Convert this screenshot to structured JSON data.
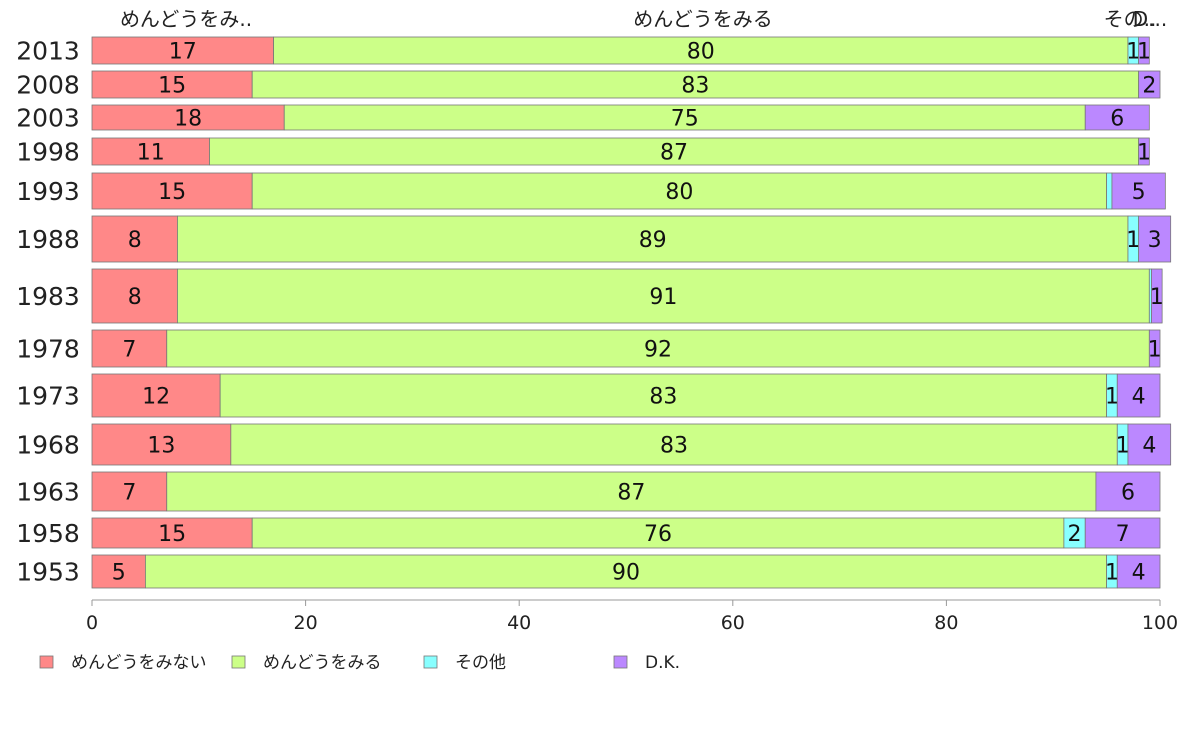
{
  "chart_data": {
    "type": "bar",
    "orientation": "horizontal",
    "stacked": true,
    "categories": [
      "2013",
      "2008",
      "2003",
      "1998",
      "1993",
      "1988",
      "1983",
      "1978",
      "1973",
      "1968",
      "1963",
      "1958",
      "1953"
    ],
    "series": [
      {
        "name": "めんどうをみない",
        "color": "#ff8888",
        "values": [
          17,
          15,
          18,
          11,
          15,
          8,
          8,
          7,
          12,
          13,
          7,
          15,
          5
        ]
      },
      {
        "name": "めんどうをみる",
        "color": "#ccff88",
        "values": [
          80,
          83,
          75,
          87,
          80,
          89,
          91,
          92,
          83,
          83,
          87,
          76,
          90
        ]
      },
      {
        "name": "その他",
        "color": "#88ffff",
        "values": [
          1,
          0,
          0,
          0,
          0.5,
          1,
          0.2,
          0,
          1,
          1,
          0,
          2,
          1
        ]
      },
      {
        "name": "D.K.",
        "color": "#bb88ff",
        "values": [
          1,
          2,
          6,
          1,
          5,
          3,
          1,
          1,
          4,
          4,
          6,
          7,
          4
        ]
      }
    ],
    "data_labels": [
      [
        "17",
        "80",
        "1",
        "1"
      ],
      [
        "15",
        "83",
        "",
        "2"
      ],
      [
        "18",
        "75",
        "",
        "6"
      ],
      [
        "11",
        "87",
        "",
        "1"
      ],
      [
        "15",
        "80",
        "",
        "5"
      ],
      [
        "8",
        "89",
        "1",
        "3"
      ],
      [
        "8",
        "91",
        "",
        "1"
      ],
      [
        "7",
        "92",
        "",
        "1"
      ],
      [
        "12",
        "83",
        "1",
        "4"
      ],
      [
        "13",
        "83",
        "1",
        "4"
      ],
      [
        "7",
        "87",
        "",
        "6"
      ],
      [
        "15",
        "76",
        "2",
        "7"
      ],
      [
        "5",
        "90",
        "1",
        "4"
      ]
    ],
    "column_headers": [
      "めんどうをみ..",
      "めんどうをみる",
      "その..",
      "D..."
    ],
    "x_ticks": [
      "0",
      "20",
      "40",
      "60",
      "80",
      "100"
    ],
    "xlim": [
      0,
      100
    ],
    "grid": false,
    "legend_position": "bottom"
  }
}
